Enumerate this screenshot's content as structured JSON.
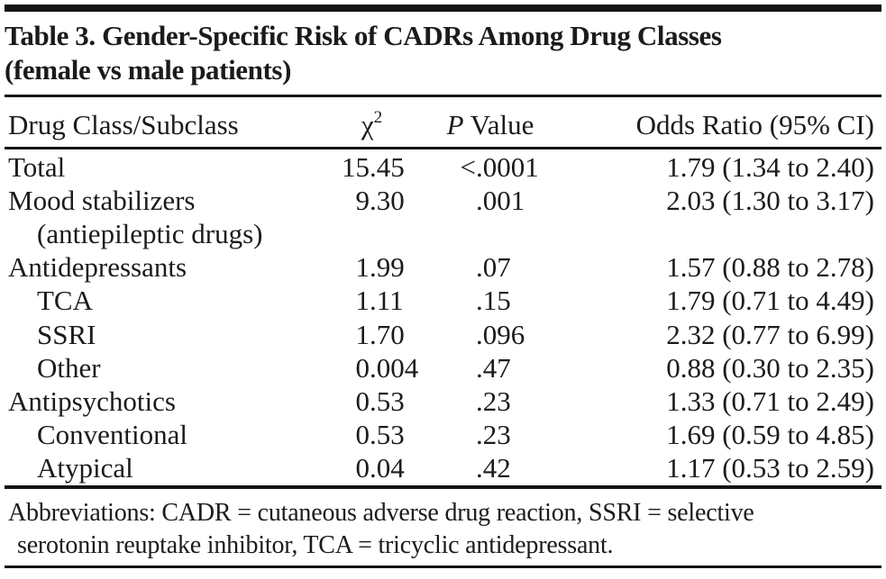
{
  "title": {
    "lines": [
      "Table 3. Gender-Specific Risk of CADRs Among Drug Classes",
      "(female vs male patients)"
    ]
  },
  "table": {
    "columns": {
      "drug_class": "Drug Class/Subclass",
      "chi_base": "χ",
      "chi_sup": "2",
      "p_italic": "P",
      "p_rest": " Value",
      "odds_ratio": "Odds Ratio (95% CI)"
    },
    "rows": [
      {
        "label": "Total",
        "indent": false,
        "chi2": "15.45",
        "p": "<.0001",
        "or": "1.79 (1.34 to 2.40)"
      },
      {
        "label": "Mood stabilizers",
        "indent": false,
        "chi2": "9.30",
        "p": ".001",
        "or": "2.03 (1.30 to 3.17)"
      },
      {
        "label": "(antiepileptic drugs)",
        "indent": true,
        "chi2": "",
        "p": "",
        "or": ""
      },
      {
        "label": "Antidepressants",
        "indent": false,
        "chi2": "1.99",
        "p": ".07",
        "or": "1.57 (0.88 to 2.78)"
      },
      {
        "label": "TCA",
        "indent": true,
        "chi2": "1.11",
        "p": ".15",
        "or": "1.79 (0.71 to 4.49)"
      },
      {
        "label": "SSRI",
        "indent": true,
        "chi2": "1.70",
        "p": ".096",
        "or": "2.32 (0.77 to 6.99)"
      },
      {
        "label": "Other",
        "indent": true,
        "chi2": "0.004",
        "p": ".47",
        "or": "0.88 (0.30 to 2.35)"
      },
      {
        "label": "Antipsychotics",
        "indent": false,
        "chi2": "0.53",
        "p": ".23",
        "or": "1.33 (0.71 to 2.49)"
      },
      {
        "label": "Conventional",
        "indent": true,
        "chi2": "0.53",
        "p": ".23",
        "or": "1.69 (0.59 to 4.85)"
      },
      {
        "label": "Atypical",
        "indent": true,
        "chi2": "0.04",
        "p": ".42",
        "or": "1.17 (0.53 to 2.59)"
      }
    ]
  },
  "footnote": {
    "lines": [
      "Abbreviations: CADR = cutaneous adverse drug reaction, SSRI = selective",
      "serotonin reuptake inhibitor, TCA = tricyclic antidepressant."
    ]
  },
  "colors": {
    "text": "#1b1b1b",
    "rule": "#141414",
    "background": "#ffffff"
  }
}
